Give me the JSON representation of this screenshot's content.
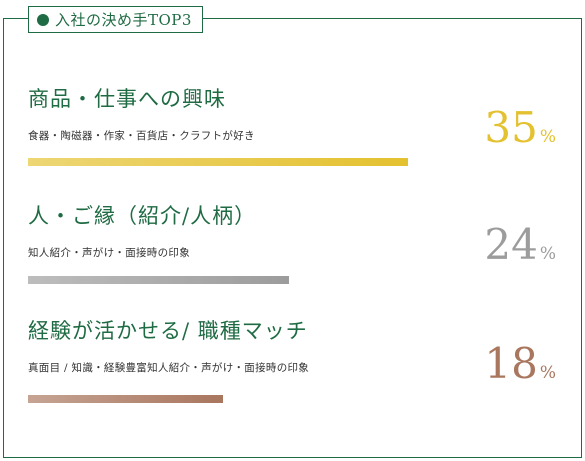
{
  "header": {
    "title": "入社の決め手TOP3"
  },
  "items": [
    {
      "title": "商品・仕事への興味",
      "desc": "食器・陶磁器・作家・百貨店・クラフトが好き",
      "percent_value": "35",
      "unit": "%",
      "fraction": 0.35,
      "color": "#e4c12f"
    },
    {
      "title": "人・ご縁（紹介/人柄）",
      "desc": "知人紹介・声がけ・面接時の印象",
      "percent_value": "24",
      "unit": "%",
      "fraction": 0.24,
      "color": "#9c9c9c"
    },
    {
      "title": "経験が活かせる/ 職種マッチ",
      "desc": "真面目 / 知識・経験豊富知人紹介・声がけ・面接時の印象",
      "percent_value": "18",
      "unit": "%",
      "fraction": 0.18,
      "color": "#a9765e"
    }
  ]
}
